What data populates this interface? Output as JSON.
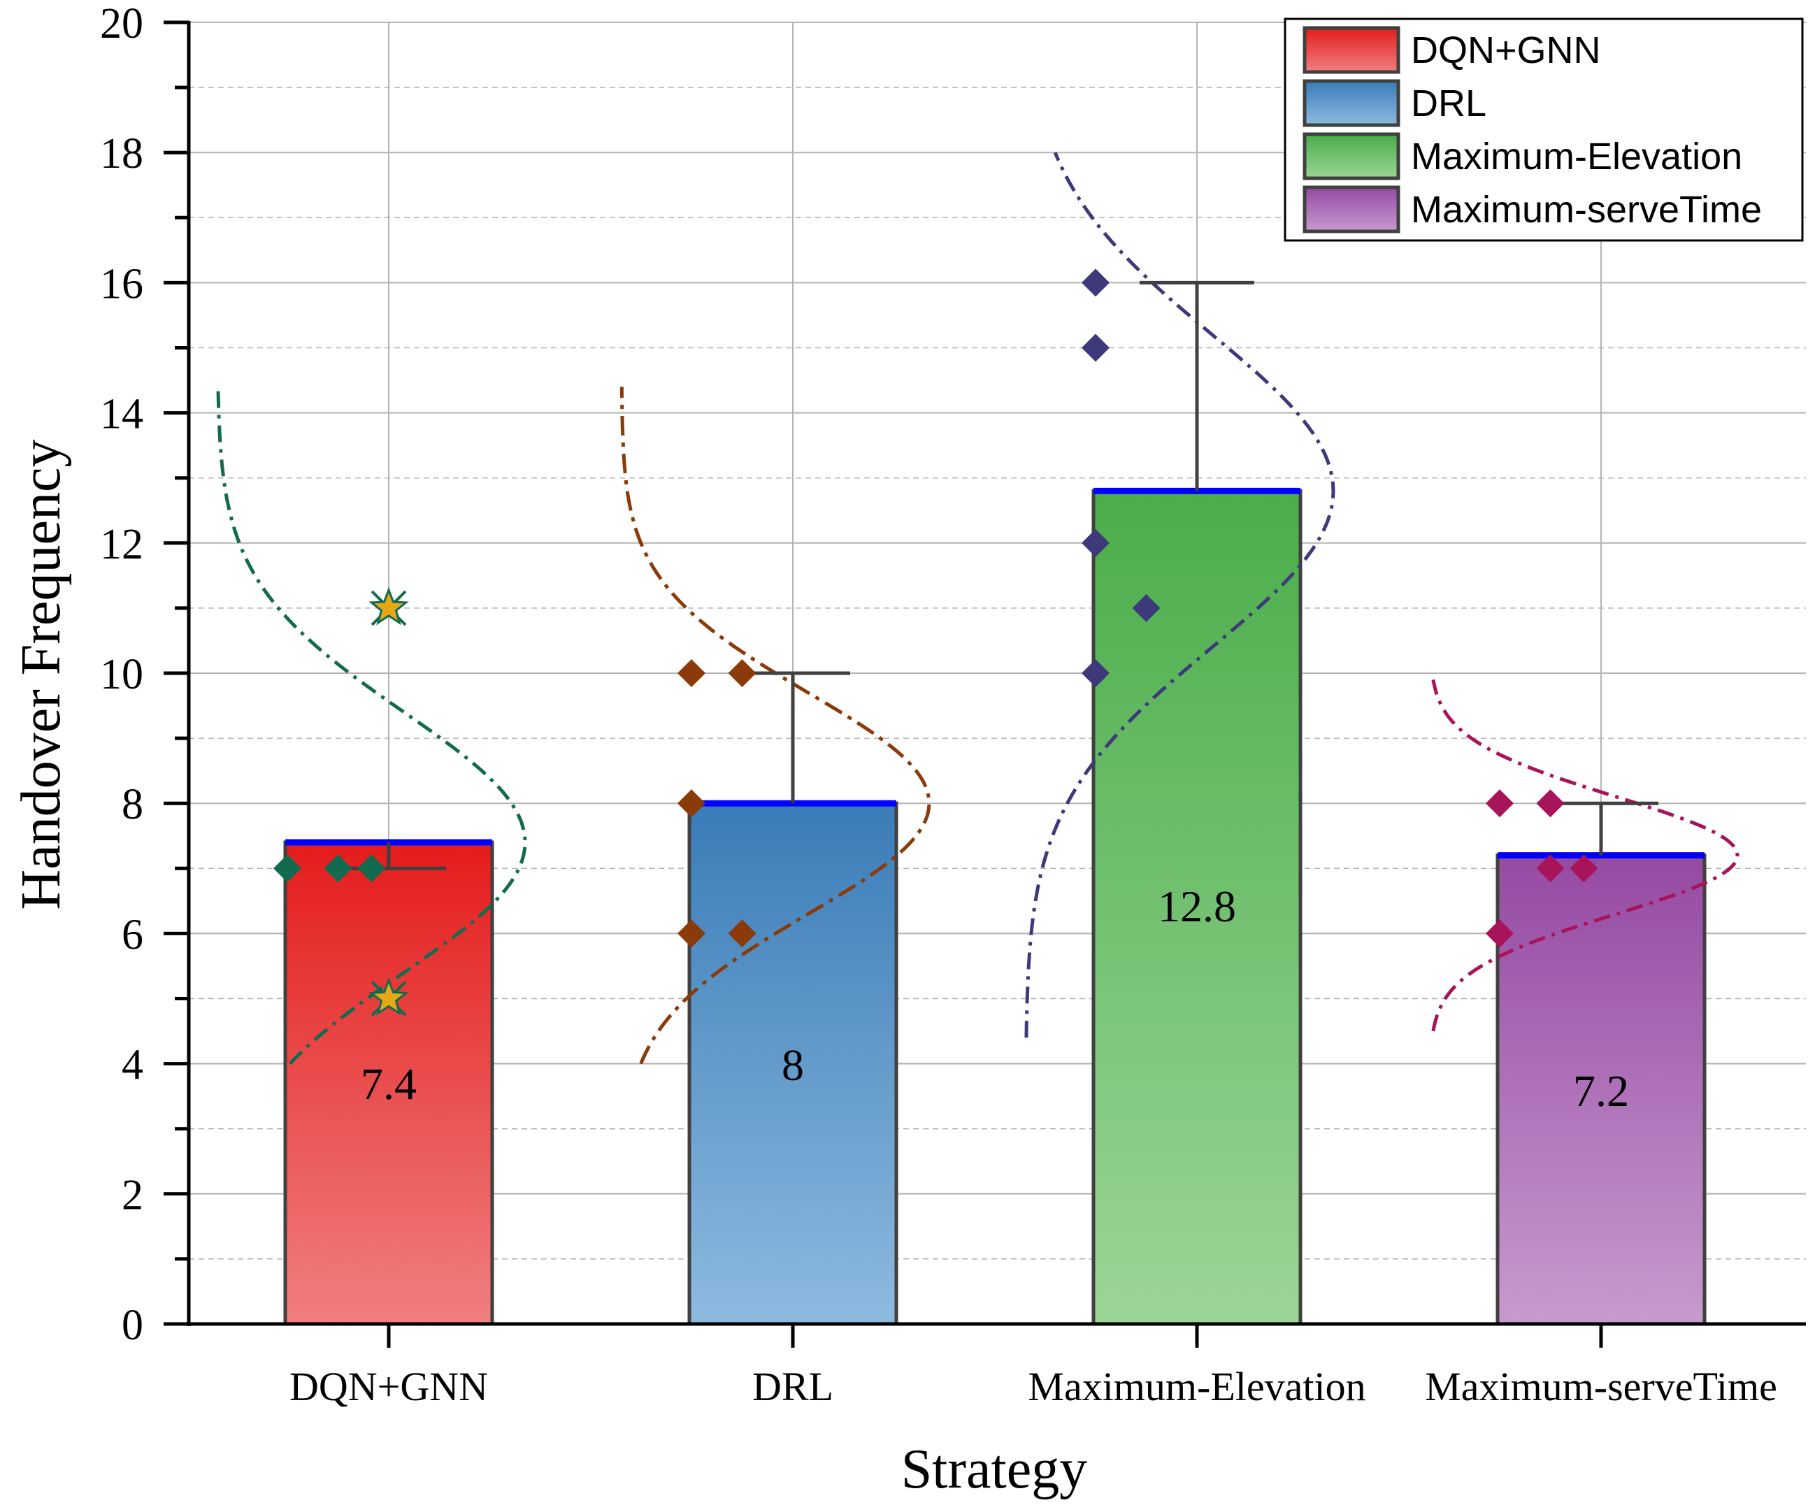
{
  "chart_data": {
    "type": "bar",
    "xlabel": "Strategy",
    "ylabel": "Handover Frequency",
    "ylim": [
      0,
      20
    ],
    "yticks": [
      0,
      2,
      4,
      6,
      8,
      10,
      12,
      14,
      16,
      18,
      20
    ],
    "categories": [
      "DQN+GNN",
      "DRL",
      "Maximum-Elevation",
      "Maximum-serveTime"
    ],
    "values": [
      7.4,
      8,
      12.8,
      7.2
    ],
    "value_labels": [
      "7.4",
      "8",
      "12.8",
      "7.2"
    ],
    "error_upper": [
      7.0,
      10,
      16,
      8
    ],
    "points": [
      [
        {
          "offset": -1.0,
          "y": 7,
          "marker": "diamond"
        },
        {
          "offset": -0.5,
          "y": 7,
          "marker": "diamond"
        },
        {
          "offset": -0.17,
          "y": 7,
          "marker": "diamond"
        },
        {
          "offset": 0,
          "y": 11,
          "marker": "star"
        },
        {
          "offset": 0,
          "y": 5,
          "marker": "star"
        }
      ],
      [
        {
          "offset": -1.0,
          "y": 10,
          "marker": "diamond"
        },
        {
          "offset": -0.5,
          "y": 10,
          "marker": "diamond"
        },
        {
          "offset": -1.0,
          "y": 8,
          "marker": "diamond"
        },
        {
          "offset": -1.0,
          "y": 6,
          "marker": "diamond"
        },
        {
          "offset": -0.5,
          "y": 6,
          "marker": "diamond"
        }
      ],
      [
        {
          "offset": -1.0,
          "y": 16,
          "marker": "diamond"
        },
        {
          "offset": -1.0,
          "y": 15,
          "marker": "diamond"
        },
        {
          "offset": -1.0,
          "y": 12,
          "marker": "diamond"
        },
        {
          "offset": -1.0,
          "y": 10,
          "marker": "diamond"
        },
        {
          "offset": -0.5,
          "y": 11,
          "marker": "diamond"
        }
      ],
      [
        {
          "offset": -1.0,
          "y": 8,
          "marker": "diamond"
        },
        {
          "offset": -0.5,
          "y": 8,
          "marker": "diamond"
        },
        {
          "offset": -0.5,
          "y": 7,
          "marker": "diamond"
        },
        {
          "offset": -0.17,
          "y": 7,
          "marker": "diamond"
        },
        {
          "offset": -1.0,
          "y": 6,
          "marker": "diamond"
        }
      ]
    ],
    "distribution_curves": [
      {
        "mean": 7.4,
        "sd": 2.0,
        "ymin": 4.0,
        "ymax": 14.4
      },
      {
        "mean": 8.0,
        "sd": 1.7,
        "ymin": 4.0,
        "ymax": 14.4
      },
      {
        "mean": 12.8,
        "sd": 2.4,
        "ymin": 4.4,
        "ymax": 18.0
      },
      {
        "mean": 7.2,
        "sd": 0.9,
        "ymin": 4.5,
        "ymax": 9.9
      }
    ],
    "legend": [
      "DQN+GNN",
      "DRL",
      "Maximum-Elevation",
      "Maximum-serveTime"
    ],
    "legend_position": "top-right",
    "grid": true,
    "colors": {
      "bar_top": [
        "#e41c1c",
        "#3a7cb8",
        "#4aad4a",
        "#954aa2"
      ],
      "bar_bottom": [
        "#f07f7f",
        "#8dbadf",
        "#9bd596",
        "#c899cf"
      ],
      "bar_edge": "#404040",
      "mean_line": "#0000ff",
      "error_bar": "#404040",
      "points": [
        "#136b4f",
        "#8b3a0a",
        "#3e3a7a",
        "#a8145a"
      ],
      "curves": [
        "#136b4f",
        "#8b3a0a",
        "#3e3a7a",
        "#a8145a"
      ],
      "star_fill": "#e6a817",
      "grid": "#b4b4b4"
    }
  }
}
